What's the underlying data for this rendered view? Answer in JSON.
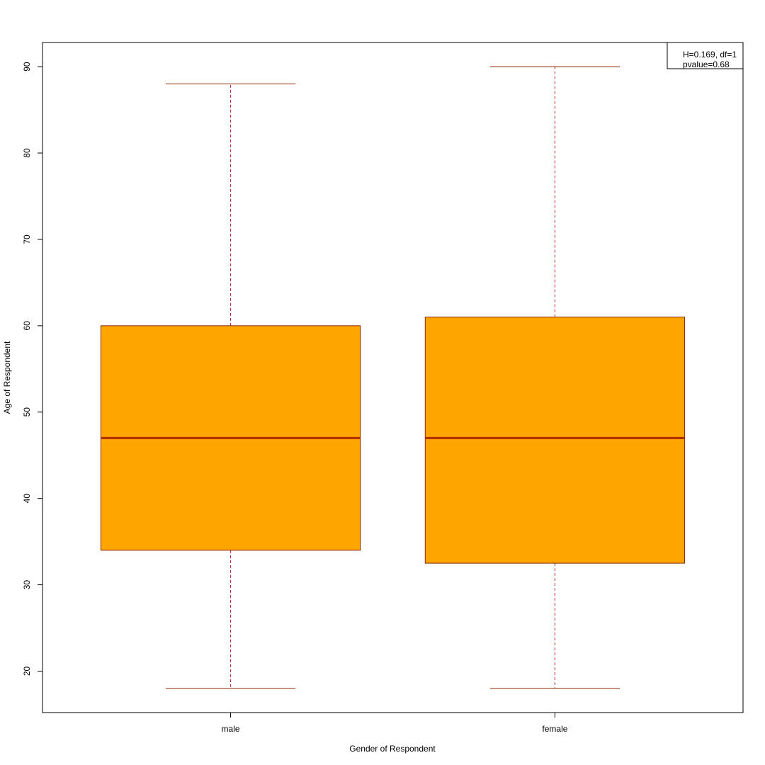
{
  "chart_data": {
    "type": "box",
    "title": "",
    "xlabel": "Gender of Respondent",
    "ylabel": "Age of Respondent",
    "ylim": [
      15.2,
      92.8
    ],
    "yticks": [
      20,
      30,
      40,
      50,
      60,
      70,
      80,
      90
    ],
    "categories": [
      "male",
      "female"
    ],
    "boxes": [
      {
        "category": "male",
        "min": 18,
        "q1": 34,
        "median": 47,
        "q3": 60,
        "max": 88
      },
      {
        "category": "female",
        "min": 18,
        "q1": 32.5,
        "median": 47,
        "q3": 61,
        "max": 90
      }
    ],
    "legend": {
      "position": "top-right",
      "lines": [
        "H=0.169, df=1",
        "pvalue=0.68"
      ]
    },
    "colors": {
      "box_fill": "#FFA500",
      "box_border": "#8B2500",
      "median": "#B22A00",
      "whisker": "#B22222",
      "axis": "#000000"
    }
  }
}
